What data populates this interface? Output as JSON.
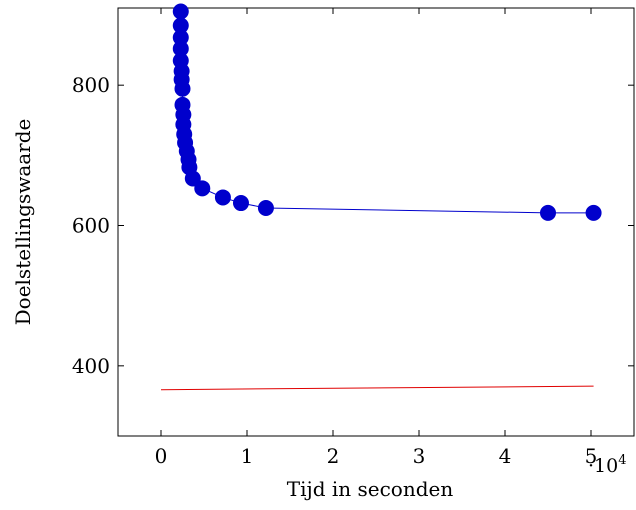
{
  "chart_data": {
    "type": "line",
    "title": "",
    "xlabel": "Tijd in seconden",
    "ylabel": "Doelstellingswaarde",
    "x_multiplier_label": "·10",
    "x_multiplier_exponent": "4",
    "xlim": [
      -0.5,
      5.5
    ],
    "ylim": [
      300,
      910
    ],
    "x_ticks": [
      0,
      1,
      2,
      3,
      4,
      5
    ],
    "x_tick_labels": [
      "0",
      "1",
      "2",
      "3",
      "4",
      "5"
    ],
    "y_ticks": [
      400,
      600,
      800
    ],
    "y_tick_labels": [
      "400",
      "600",
      "800"
    ],
    "grid": false,
    "legend": "none",
    "series": [
      {
        "color": "#0000cc",
        "marker": "circle",
        "x": [
          0.23,
          0.23,
          0.23,
          0.23,
          0.23,
          0.24,
          0.24,
          0.25,
          0.25,
          0.26,
          0.26,
          0.27,
          0.28,
          0.3,
          0.32,
          0.33,
          0.37,
          0.48,
          0.72,
          0.93,
          1.22,
          4.5,
          5.03
        ],
        "y": [
          905,
          885,
          868,
          852,
          835,
          820,
          808,
          795,
          772,
          758,
          744,
          730,
          718,
          706,
          694,
          683,
          667,
          653,
          640,
          632,
          625,
          618,
          618
        ]
      },
      {
        "color": "#e00000",
        "marker": "none",
        "x": [
          0.0,
          5.03
        ],
        "y": [
          366,
          371
        ]
      }
    ]
  }
}
